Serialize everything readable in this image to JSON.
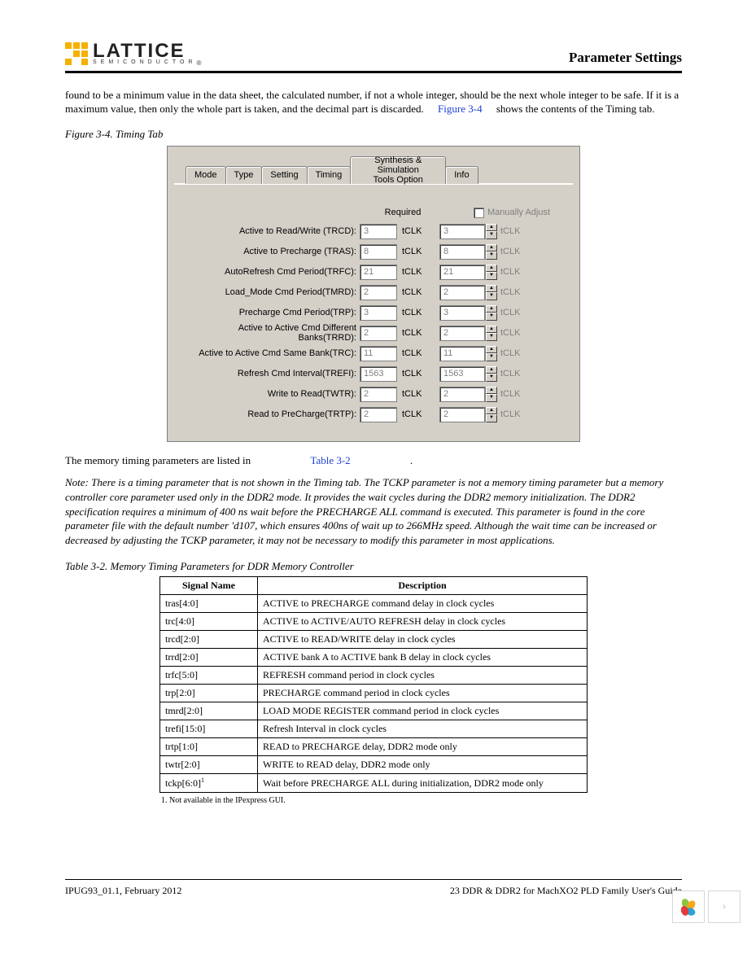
{
  "header": {
    "logo_main": "LATTICE",
    "logo_sub": "SEMICONDUCTOR",
    "section_title": "Parameter Settings"
  },
  "intro": {
    "pre_link": "found to be a minimum value in the data sheet, the calculated number, if not a whole integer, should be the next whole integer to be safe. If it is a maximum value, then only the whole part is taken, and the decimal part is discarded.",
    "link": "Figure 3-4",
    "post_link": " shows the contents of the Timing tab."
  },
  "figure_caption": "Figure 3-4. Timing Tab",
  "dialog": {
    "tabs": [
      "Mode",
      "Type",
      "Setting",
      "Timing",
      "Synthesis & Simulation Tools Option",
      "Info"
    ],
    "active_tab_index": 3,
    "required_label": "Required",
    "manual_label": "Manually Adjust",
    "unit": "tCLK",
    "rows": [
      {
        "label": "Active to Read/Write (TRCD):",
        "v1": "3",
        "v2": "3"
      },
      {
        "label": "Active to Precharge (TRAS):",
        "v1": "8",
        "v2": "8"
      },
      {
        "label": "AutoRefresh Cmd Period(TRFC):",
        "v1": "21",
        "v2": "21"
      },
      {
        "label": "Load_Mode Cmd Period(TMRD):",
        "v1": "2",
        "v2": "2"
      },
      {
        "label": "Precharge Cmd Period(TRP):",
        "v1": "3",
        "v2": "3"
      },
      {
        "label": "Active to Active Cmd Different Banks(TRRD):",
        "v1": "2",
        "v2": "2"
      },
      {
        "label": "Active to Active Cmd Same Bank(TRC):",
        "v1": "11",
        "v2": "11"
      },
      {
        "label": "Refresh Cmd Interval(TREFI):",
        "v1": "1563",
        "v2": "1563"
      },
      {
        "label": "Write to Read(TWTR):",
        "v1": "2",
        "v2": "2"
      },
      {
        "label": "Read to PreCharge(TRTP):",
        "v1": "2",
        "v2": "2"
      }
    ]
  },
  "mid_text": {
    "pre": "The memory timing parameters are listed in",
    "link": "Table 3-2",
    "post": "."
  },
  "note": "Note: There is a timing parameter that is not shown in the Timing tab. The TCKP parameter is not a memory timing parameter but a memory controller core parameter used only in the DDR2 mode. It provides the wait cycles during the DDR2 memory initialization. The DDR2 specification requires a minimum of 400 ns wait before the PRECHARGE ALL command is executed. This parameter is found in the core parameter file with the default number 'd107, which ensures 400ns of wait up to 266MHz speed. Although the wait time can be increased or decreased by adjusting the TCKP parameter, it may not be necessary to modify this parameter in most applications.",
  "table_caption": "Table 3-2. Memory Timing Parameters for DDR Memory Controller",
  "table": {
    "columns": [
      "Signal Name",
      "Description"
    ],
    "col_widths": [
      "120px",
      "auto"
    ],
    "rows": [
      [
        "tras[4:0]",
        "ACTIVE to PRECHARGE command delay in clock cycles"
      ],
      [
        "trc[4:0]",
        "ACTIVE to ACTIVE/AUTO REFRESH delay in clock cycles"
      ],
      [
        "trcd[2:0]",
        "ACTIVE to READ/WRITE delay in clock cycles"
      ],
      [
        "trrd[2:0]",
        "ACTIVE bank A to ACTIVE bank B delay in clock cycles"
      ],
      [
        "trfc[5:0]",
        "REFRESH command period in clock cycles"
      ],
      [
        "trp[2:0]",
        "PRECHARGE command period in clock cycles"
      ],
      [
        "tmrd[2:0]",
        "LOAD MODE REGISTER command period in clock cycles"
      ],
      [
        "trefi[15:0]",
        "Refresh Interval in clock cycles"
      ],
      [
        "trtp[1:0]",
        "READ to PRECHARGE delay, DDR2 mode only"
      ],
      [
        "twtr[2:0]",
        "WRITE to READ delay, DDR2 mode only"
      ],
      [
        "tckp[6:0]",
        "Wait before PRECHARGE ALL during initialization, DDR2 mode only"
      ]
    ],
    "footnote": "1. Not available in the IPexpress GUI."
  },
  "footer": {
    "left": "IPUG93_01.1, February 2012",
    "right": "23 DDR & DDR2 for MachXO2 PLD Family User's Guide"
  },
  "colors": {
    "link": "#1a3fd6",
    "dialog_bg": "#d4d0c8",
    "disabled_text": "#808080",
    "logo_accent": "#f4b100"
  }
}
